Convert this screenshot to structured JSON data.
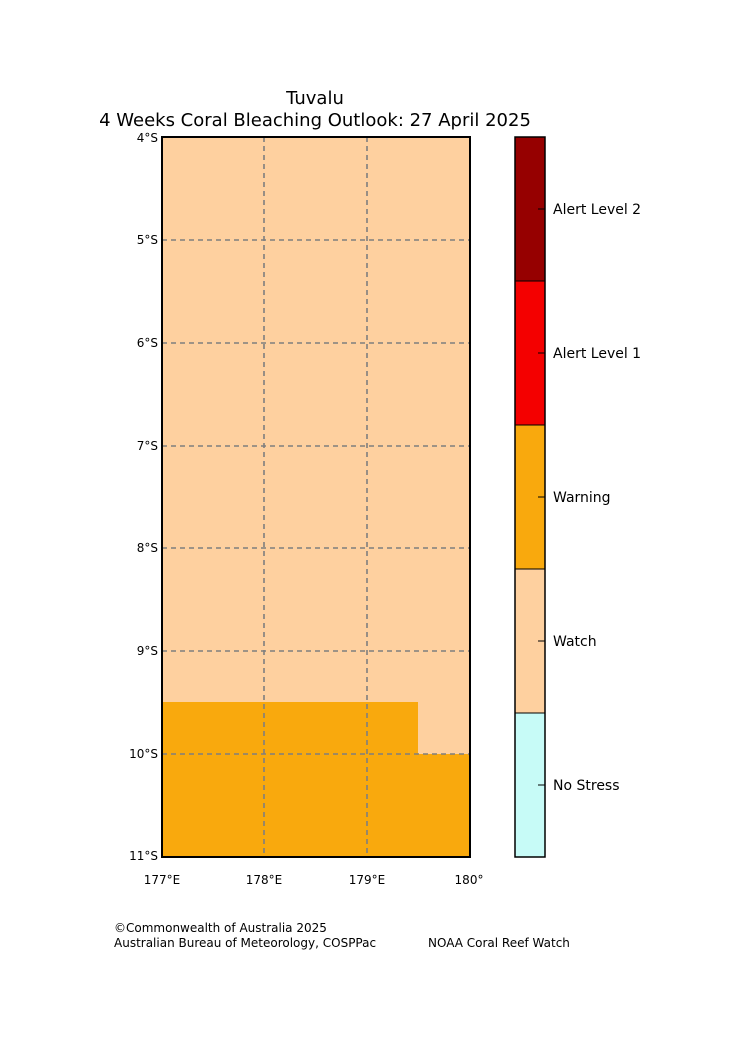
{
  "title": {
    "line1": "Tuvalu",
    "line2": "4 Weeks Coral Bleaching Outlook: 27 April 2025"
  },
  "map": {
    "lat_labels": [
      "4°S",
      "5°S",
      "6°S",
      "7°S",
      "8°S",
      "9°S",
      "10°S",
      "11°S"
    ],
    "lon_labels": [
      "177°E",
      "178°E",
      "179°E",
      "180°"
    ],
    "regions": [
      {
        "name": "watch-region",
        "level": "Watch",
        "color": "#fed09f"
      },
      {
        "name": "warning-region",
        "level": "Warning",
        "color": "#f9a90d"
      }
    ],
    "gridline_color": "#7f7f7f"
  },
  "legend": {
    "items": [
      {
        "label": "Alert Level 2",
        "color": "#960000"
      },
      {
        "label": "Alert Level 1",
        "color": "#f40000"
      },
      {
        "label": "Warning",
        "color": "#f9a90d"
      },
      {
        "label": "Watch",
        "color": "#fed09f"
      },
      {
        "label": "No Stress",
        "color": "#c7fbf7"
      }
    ]
  },
  "footer": {
    "copyright": "©Commonwealth of Australia 2025",
    "agencies": "Australian Bureau of Meteorology, COSPPac",
    "noaa": "NOAA Coral Reef Watch"
  }
}
